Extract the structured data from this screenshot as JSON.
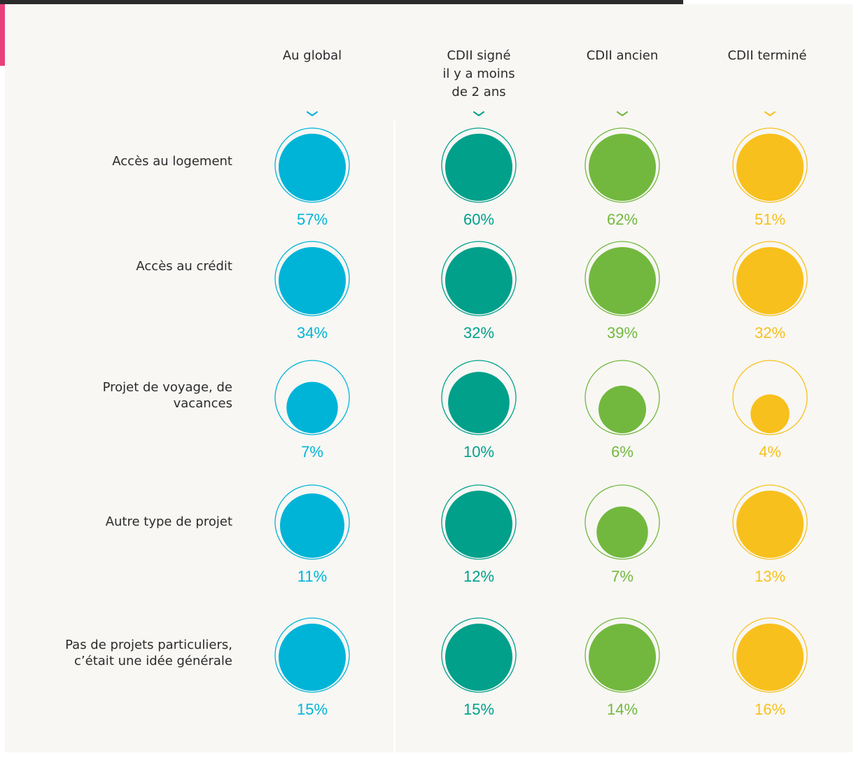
{
  "chart_data": {
    "type": "bubble-matrix",
    "title": "",
    "columns": [
      {
        "label": "Au global",
        "color": "#00b4d8"
      },
      {
        "label": "CDII signé il y a moins de 2 ans",
        "color": "#00a08b"
      },
      {
        "label": "CDII ancien",
        "color": "#72b83e"
      },
      {
        "label": "CDII terminé",
        "color": "#f8c01c"
      }
    ],
    "rows": [
      "Accès au logement",
      "Accès au crédit",
      "Projet de voyage, de vacances",
      "Autre type de projet",
      "Pas de projets particuliers, c’était une idée générale"
    ],
    "values": [
      [
        57,
        60,
        62,
        51
      ],
      [
        34,
        32,
        39,
        32
      ],
      [
        7,
        10,
        6,
        4
      ],
      [
        11,
        12,
        7,
        13
      ],
      [
        15,
        15,
        14,
        16
      ]
    ],
    "unit": "%"
  },
  "headers": {
    "col0": [
      "Au global"
    ],
    "col1": [
      "CDII signé",
      "il y a moins",
      "de 2 ans"
    ],
    "col2": [
      "CDII ancien"
    ],
    "col3": [
      "CDII terminé"
    ]
  },
  "row_labels": [
    [
      "Accès au logement"
    ],
    [
      "Accès au crédit"
    ],
    [
      "Projet de voyage, de",
      "vacances"
    ],
    [
      "Autre type de projet"
    ],
    [
      "Pas de projets particuliers,",
      "c’était une idée générale"
    ]
  ],
  "icons": {
    "column_marker": "chevron-down-icon"
  }
}
